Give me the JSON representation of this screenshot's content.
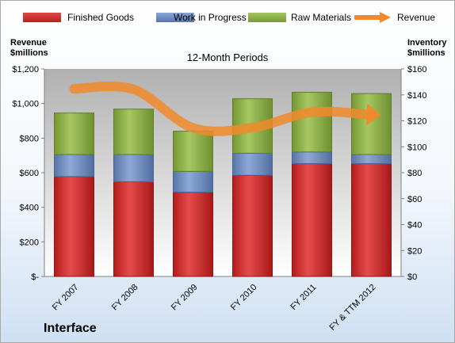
{
  "chart_data": {
    "type": "bar",
    "stacked": true,
    "title": "12-Month Periods",
    "categories": [
      "FY 2007",
      "FY 2008",
      "FY 2009",
      "FY 2010",
      "FY 2011",
      "FY & TTM 2012"
    ],
    "series": [
      {
        "name": "Finished Goods",
        "axis": "right",
        "color": "#cc2222",
        "values": [
          77,
          73,
          65,
          78,
          87,
          87
        ]
      },
      {
        "name": "Work in Progress",
        "axis": "right",
        "color": "#6b8cc2",
        "values": [
          17,
          21,
          16,
          17,
          9,
          7
        ]
      },
      {
        "name": "Raw Materials",
        "axis": "right",
        "color": "#8fb04a",
        "values": [
          32,
          35,
          31,
          42,
          46,
          47
        ]
      },
      {
        "name": "Revenue",
        "type": "line",
        "axis": "left",
        "color": "#f08a2c",
        "values": [
          1085,
          1082,
          859,
          860,
          950,
          935
        ]
      }
    ],
    "left_axis": {
      "label": "Revenue $millions",
      "ylim": [
        0,
        1200
      ],
      "ticks": [
        "$-",
        "$200",
        "$400",
        "$600",
        "$800",
        "$1,000",
        "$1,200"
      ]
    },
    "right_axis": {
      "label": "Inventory $millions",
      "ylim": [
        0,
        160
      ],
      "ticks": [
        "$0",
        "$20",
        "$40",
        "$60",
        "$80",
        "$100",
        "$120",
        "$140",
        "$160"
      ]
    },
    "legend_position": "top",
    "grid": false
  },
  "legend": [
    {
      "label": "Finished Goods",
      "color": "#cc2222"
    },
    {
      "label": "Work in Progress",
      "color": "#6b8cc2"
    },
    {
      "label": "Raw Materials",
      "color": "#8fb04a"
    },
    {
      "label": "Revenue",
      "color": "#f08a2c"
    }
  ],
  "labels": {
    "left_axis_line1": "Revenue",
    "left_axis_line2": "$millions",
    "right_axis_line1": "Inventory",
    "right_axis_line2": "$millions",
    "company": "Interface"
  }
}
